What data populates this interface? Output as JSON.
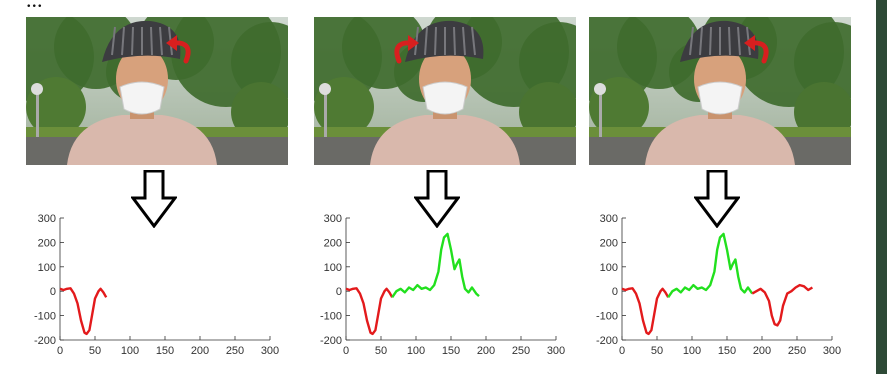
{
  "caption_fragment": "...",
  "figure_panels": [
    {
      "rotation_icon": "curved-arrow-icon",
      "rotation_direction": "right"
    },
    {
      "rotation_icon": "curved-arrow-icon",
      "rotation_direction": "left"
    },
    {
      "rotation_icon": "curved-arrow-icon",
      "rotation_direction": "right"
    }
  ],
  "colors": {
    "red_segment": "#e31a1c",
    "green_segment": "#22e01e",
    "arrow_icon": "#d81f1f"
  },
  "chart_data": [
    {
      "type": "line",
      "title": "",
      "xlabel": "",
      "ylabel": "",
      "xlim": [
        0,
        300
      ],
      "ylim": [
        -200,
        300
      ],
      "xticks": [
        0,
        50,
        100,
        150,
        200,
        250,
        300
      ],
      "yticks": [
        -200,
        -100,
        0,
        100,
        200,
        300
      ],
      "grid": false,
      "series": [
        {
          "color": "#e31a1c",
          "x": [
            0,
            5,
            10,
            15,
            20,
            25,
            30,
            35,
            38,
            42,
            46,
            50,
            55,
            58,
            62,
            66
          ],
          "y": [
            10,
            5,
            10,
            12,
            -10,
            -50,
            -120,
            -170,
            -175,
            -160,
            -95,
            -30,
            0,
            10,
            -5,
            -25
          ]
        }
      ]
    },
    {
      "type": "line",
      "title": "",
      "xlabel": "",
      "ylabel": "",
      "xlim": [
        0,
        300
      ],
      "ylim": [
        -200,
        300
      ],
      "xticks": [
        0,
        50,
        100,
        150,
        200,
        250,
        300
      ],
      "yticks": [
        -200,
        -100,
        0,
        100,
        200,
        300
      ],
      "grid": false,
      "series": [
        {
          "color": "#e31a1c",
          "x": [
            0,
            5,
            10,
            15,
            20,
            25,
            30,
            35,
            38,
            42,
            46,
            50,
            55,
            58,
            62,
            66
          ],
          "y": [
            10,
            5,
            10,
            12,
            -10,
            -50,
            -120,
            -170,
            -175,
            -160,
            -95,
            -30,
            0,
            10,
            -5,
            -25
          ]
        },
        {
          "color": "#22e01e",
          "x": [
            66,
            72,
            78,
            84,
            90,
            96,
            102,
            108,
            114,
            120,
            126,
            132,
            136,
            140,
            145,
            150,
            155,
            158,
            162,
            166,
            170,
            175,
            180,
            186,
            190
          ],
          "y": [
            -25,
            0,
            10,
            -5,
            15,
            5,
            25,
            10,
            15,
            5,
            25,
            80,
            170,
            220,
            235,
            170,
            90,
            110,
            130,
            60,
            10,
            -5,
            15,
            -10,
            -20
          ]
        }
      ]
    },
    {
      "type": "line",
      "title": "",
      "xlabel": "",
      "ylabel": "",
      "xlim": [
        0,
        300
      ],
      "ylim": [
        -200,
        300
      ],
      "xticks": [
        0,
        50,
        100,
        150,
        200,
        250,
        300
      ],
      "yticks": [
        -200,
        -100,
        0,
        100,
        200,
        300
      ],
      "grid": false,
      "series": [
        {
          "color": "#e31a1c",
          "x": [
            0,
            5,
            10,
            15,
            20,
            25,
            30,
            35,
            38,
            42,
            46,
            50,
            55,
            58,
            62,
            66
          ],
          "y": [
            10,
            5,
            10,
            12,
            -10,
            -50,
            -120,
            -170,
            -175,
            -160,
            -95,
            -30,
            0,
            10,
            -5,
            -25
          ]
        },
        {
          "color": "#22e01e",
          "x": [
            66,
            72,
            78,
            84,
            90,
            96,
            102,
            108,
            114,
            120,
            126,
            132,
            136,
            140,
            145,
            150,
            155,
            158,
            162,
            166,
            170,
            175,
            180,
            186
          ],
          "y": [
            -25,
            0,
            10,
            -5,
            15,
            5,
            25,
            10,
            15,
            5,
            25,
            80,
            170,
            220,
            235,
            170,
            90,
            110,
            130,
            60,
            10,
            -5,
            15,
            -10
          ]
        },
        {
          "color": "#e31a1c",
          "x": [
            186,
            192,
            198,
            204,
            210,
            214,
            218,
            222,
            226,
            230,
            236,
            242,
            248,
            254,
            260,
            266,
            272
          ],
          "y": [
            -10,
            0,
            10,
            -5,
            -40,
            -100,
            -135,
            -140,
            -120,
            -60,
            -10,
            0,
            15,
            25,
            20,
            5,
            15
          ]
        }
      ]
    }
  ]
}
